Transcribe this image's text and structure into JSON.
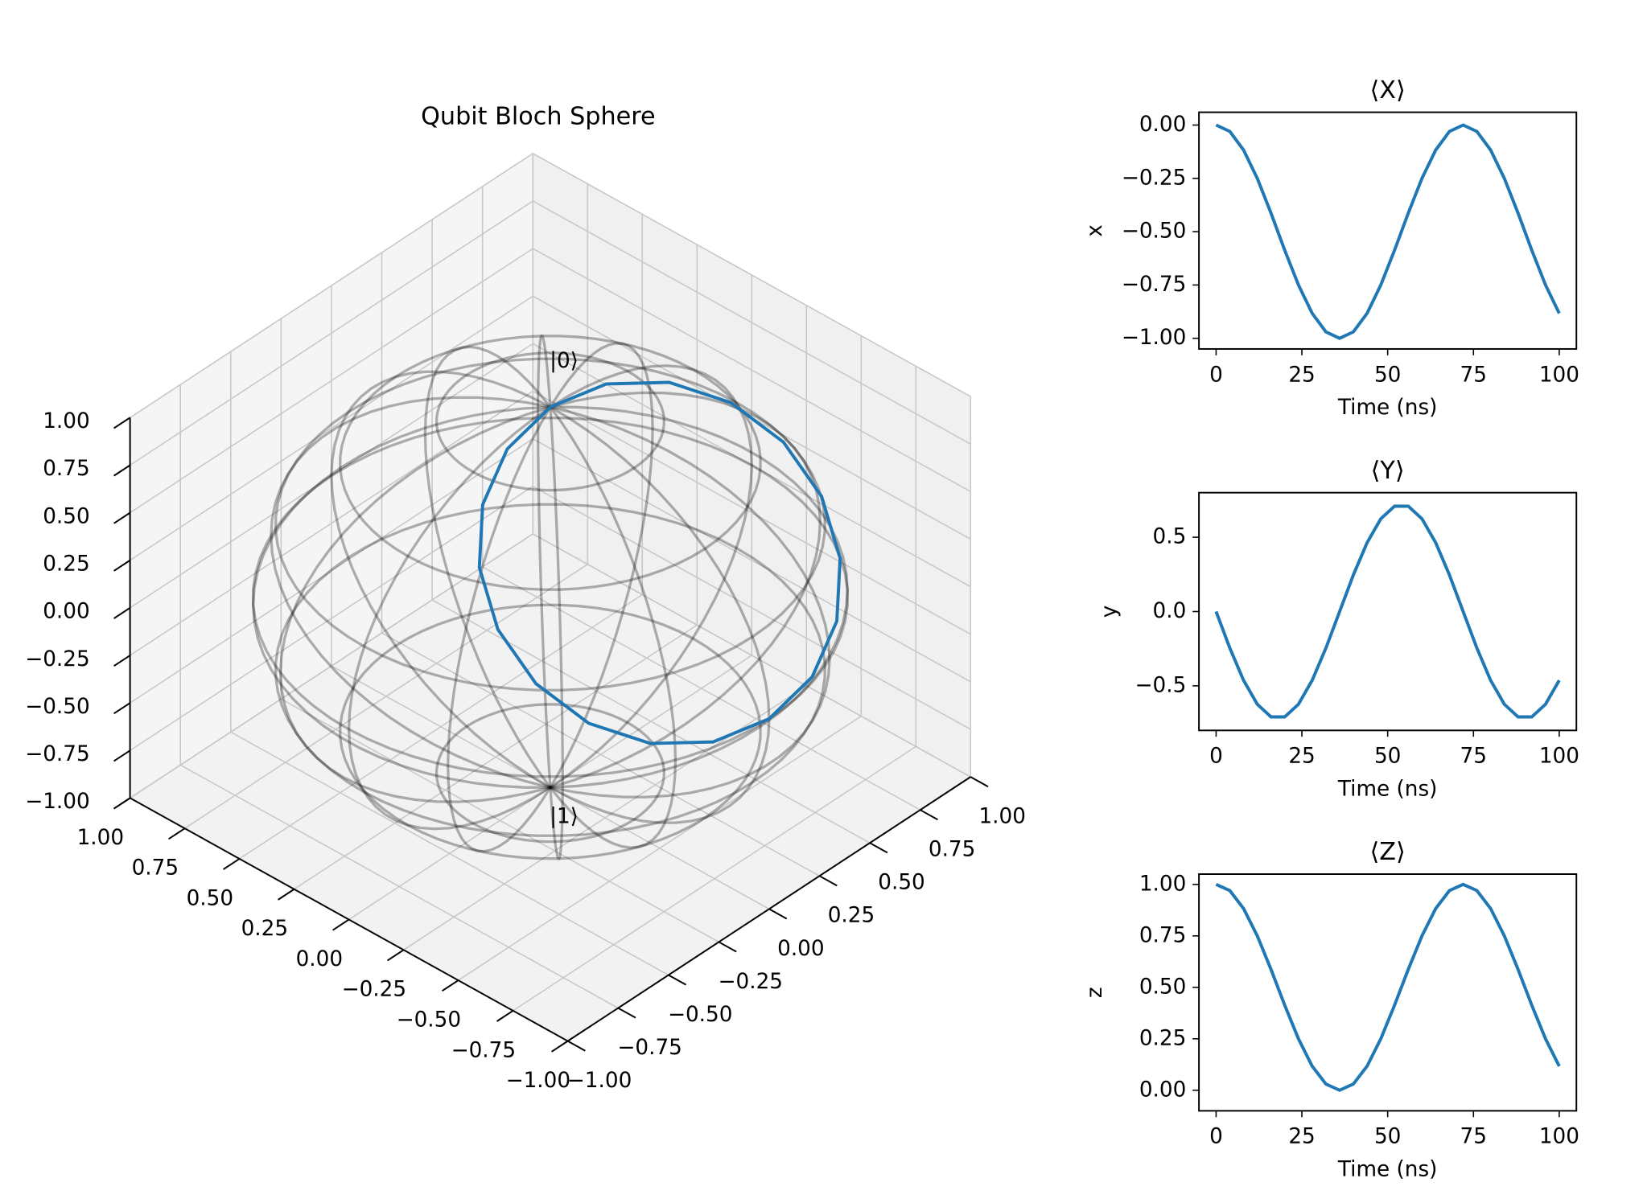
{
  "chart_data": [
    {
      "type": "line3d",
      "title": "Qubit Bloch Sphere",
      "state_labels": [
        "|0⟩",
        "|1⟩"
      ],
      "color": "#1f77b4",
      "x": [
        0,
        -0.03,
        -0.117,
        -0.25,
        -0.413,
        -0.587,
        -0.75,
        -0.883,
        -0.97,
        -1,
        -0.97,
        -0.883,
        -0.75,
        -0.587,
        -0.413,
        -0.25,
        -0.117,
        -0.03,
        0,
        -0.03,
        -0.117,
        -0.25,
        -0.413,
        -0.587,
        -0.75,
        -0.883
      ],
      "y": [
        0,
        -0.246,
        -0.463,
        -0.624,
        -0.709,
        -0.709,
        -0.624,
        -0.463,
        -0.246,
        0,
        0.246,
        0.463,
        0.624,
        0.709,
        0.709,
        0.624,
        0.463,
        0.246,
        0,
        -0.246,
        -0.463,
        -0.624,
        -0.709,
        -0.709,
        -0.624,
        -0.463
      ],
      "z": [
        1,
        0.97,
        0.883,
        0.75,
        0.587,
        0.413,
        0.25,
        0.117,
        0.03,
        0,
        0.03,
        0.117,
        0.25,
        0.413,
        0.587,
        0.75,
        0.883,
        0.97,
        1,
        0.97,
        0.883,
        0.75,
        0.587,
        0.413,
        0.25,
        0.117
      ],
      "xlim": [
        -1,
        1
      ],
      "ylim": [
        -1,
        1
      ],
      "zlim": [
        -1,
        1
      ],
      "xticks": [
        {
          "value": -1,
          "label": "−1.00"
        },
        {
          "value": -0.75,
          "label": "−0.75"
        },
        {
          "value": -0.5,
          "label": "−0.50"
        },
        {
          "value": -0.25,
          "label": "−0.25"
        },
        {
          "value": 0,
          "label": "0.00"
        },
        {
          "value": 0.25,
          "label": "0.25"
        },
        {
          "value": 0.5,
          "label": "0.50"
        },
        {
          "value": 0.75,
          "label": "0.75"
        },
        {
          "value": 1,
          "label": "1.00"
        }
      ],
      "yticks": [
        {
          "value": -1,
          "label": "−1.00"
        },
        {
          "value": -0.75,
          "label": "−0.75"
        },
        {
          "value": -0.5,
          "label": "−0.50"
        },
        {
          "value": -0.25,
          "label": "−0.25"
        },
        {
          "value": 0,
          "label": "0.00"
        },
        {
          "value": 0.25,
          "label": "0.25"
        },
        {
          "value": 0.5,
          "label": "0.50"
        },
        {
          "value": 0.75,
          "label": "0.75"
        },
        {
          "value": 1,
          "label": "1.00"
        }
      ],
      "zticks": [
        {
          "value": -1,
          "label": "−1.00"
        },
        {
          "value": -0.75,
          "label": "−0.75"
        },
        {
          "value": -0.5,
          "label": "−0.50"
        },
        {
          "value": -0.25,
          "label": "−0.25"
        },
        {
          "value": 0,
          "label": "0.00"
        },
        {
          "value": 0.25,
          "label": "0.25"
        },
        {
          "value": 0.5,
          "label": "0.50"
        },
        {
          "value": 0.75,
          "label": "0.75"
        },
        {
          "value": 1,
          "label": "1.00"
        }
      ]
    },
    {
      "type": "line",
      "title": "⟨X⟩",
      "x_label": "Time (ns)",
      "y_label": "x",
      "color": "#1f77b4",
      "x": [
        0,
        4,
        8,
        12,
        16,
        20,
        24,
        28,
        32,
        36,
        40,
        44,
        48,
        52,
        56,
        60,
        64,
        68,
        72,
        76,
        80,
        84,
        88,
        92,
        96,
        100
      ],
      "values": [
        0,
        -0.03,
        -0.117,
        -0.25,
        -0.413,
        -0.587,
        -0.75,
        -0.883,
        -0.97,
        -1,
        -0.97,
        -0.883,
        -0.75,
        -0.587,
        -0.413,
        -0.25,
        -0.117,
        -0.03,
        0,
        -0.03,
        -0.117,
        -0.25,
        -0.413,
        -0.587,
        -0.75,
        -0.883
      ],
      "xlim": [
        -5,
        105
      ],
      "xticks": [
        0,
        25,
        50,
        75,
        100
      ],
      "ylim": [
        -1.05,
        0.06
      ],
      "yticks": [
        {
          "value": -1,
          "label": "−1.00"
        },
        {
          "value": -0.75,
          "label": "−0.75"
        },
        {
          "value": -0.5,
          "label": "−0.50"
        },
        {
          "value": -0.25,
          "label": "−0.25"
        },
        {
          "value": 0,
          "label": "0.00"
        }
      ]
    },
    {
      "type": "line",
      "title": "⟨Y⟩",
      "x_label": "Time (ns)",
      "y_label": "y",
      "color": "#1f77b4",
      "x": [
        0,
        4,
        8,
        12,
        16,
        20,
        24,
        28,
        32,
        36,
        40,
        44,
        48,
        52,
        56,
        60,
        64,
        68,
        72,
        76,
        80,
        84,
        88,
        92,
        96,
        100
      ],
      "values": [
        0,
        -0.246,
        -0.463,
        -0.624,
        -0.709,
        -0.709,
        -0.624,
        -0.463,
        -0.246,
        0,
        0.246,
        0.463,
        0.624,
        0.709,
        0.709,
        0.624,
        0.463,
        0.246,
        0,
        -0.246,
        -0.463,
        -0.624,
        -0.709,
        -0.709,
        -0.624,
        -0.463
      ],
      "xlim": [
        -5,
        105
      ],
      "xticks": [
        0,
        25,
        50,
        75,
        100
      ],
      "ylim": [
        -0.8,
        0.8
      ],
      "yticks": [
        {
          "value": -0.5,
          "label": "−0.5"
        },
        {
          "value": 0,
          "label": "0.0"
        },
        0.5
      ]
    },
    {
      "type": "line",
      "title": "⟨Z⟩",
      "x_label": "Time (ns)",
      "y_label": "z",
      "color": "#1f77b4",
      "x": [
        0,
        4,
        8,
        12,
        16,
        20,
        24,
        28,
        32,
        36,
        40,
        44,
        48,
        52,
        56,
        60,
        64,
        68,
        72,
        76,
        80,
        84,
        88,
        92,
        96,
        100
      ],
      "values": [
        1,
        0.97,
        0.883,
        0.75,
        0.587,
        0.413,
        0.25,
        0.117,
        0.03,
        0,
        0.03,
        0.117,
        0.25,
        0.413,
        0.587,
        0.75,
        0.883,
        0.97,
        1,
        0.97,
        0.883,
        0.75,
        0.587,
        0.413,
        0.25,
        0.117
      ],
      "xlim": [
        -5,
        105
      ],
      "xticks": [
        0,
        25,
        50,
        75,
        100
      ],
      "ylim": [
        -0.1,
        1.05
      ],
      "yticks": [
        {
          "value": 0,
          "label": "0.00"
        },
        {
          "value": 0.25,
          "label": "0.25"
        },
        {
          "value": 0.5,
          "label": "0.50"
        },
        {
          "value": 0.75,
          "label": "0.75"
        },
        {
          "value": 1,
          "label": "1.00"
        }
      ]
    }
  ]
}
